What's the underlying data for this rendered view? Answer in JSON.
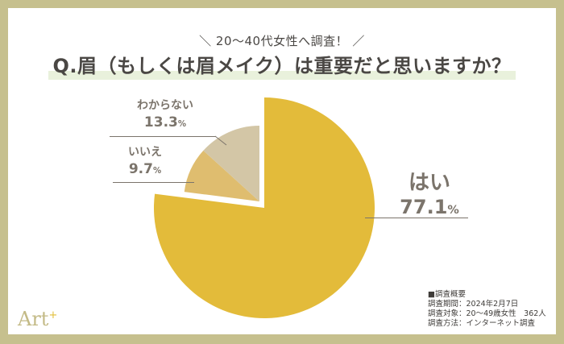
{
  "header": {
    "subtitle": "＼ 20〜40代女性へ調査！ ／",
    "title": "Q.眉（もしくは眉メイク）は重要だと思いますか？"
  },
  "labels": {
    "yes": {
      "name": "はい",
      "value": "77.1",
      "unit": "%"
    },
    "no": {
      "name": "いいえ",
      "value": "9.7",
      "unit": "%"
    },
    "unknown": {
      "name": "わからない",
      "value": "13.3",
      "unit": "%"
    }
  },
  "notes": {
    "heading": "■調査概要",
    "period": "調査期間：2024年2月7日",
    "target": "調査対象：20〜49歳女性　362人",
    "method": "調査方法：インターネット調査"
  },
  "logo": {
    "text": "Art",
    "sup": "+"
  },
  "colors": {
    "frame": "#c6c08e",
    "yes": "#e3bb3a",
    "no": "#dfbd6f",
    "unknown": "#d3c6a6",
    "label": "#7b746b"
  },
  "chart_data": {
    "type": "pie",
    "title": "Q.眉（もしくは眉メイク）は重要だと思いますか？",
    "subtitle": "20〜40代女性へ調査！",
    "categories": [
      "はい",
      "いいえ",
      "わからない"
    ],
    "values": [
      77.1,
      9.7,
      13.3
    ],
    "unit": "%",
    "colors": [
      "#e3bb3a",
      "#dfbd6f",
      "#d3c6a6"
    ],
    "start_angle": "12 o'clock, clockwise",
    "exploded": [
      "いいえ",
      "わからない"
    ]
  }
}
